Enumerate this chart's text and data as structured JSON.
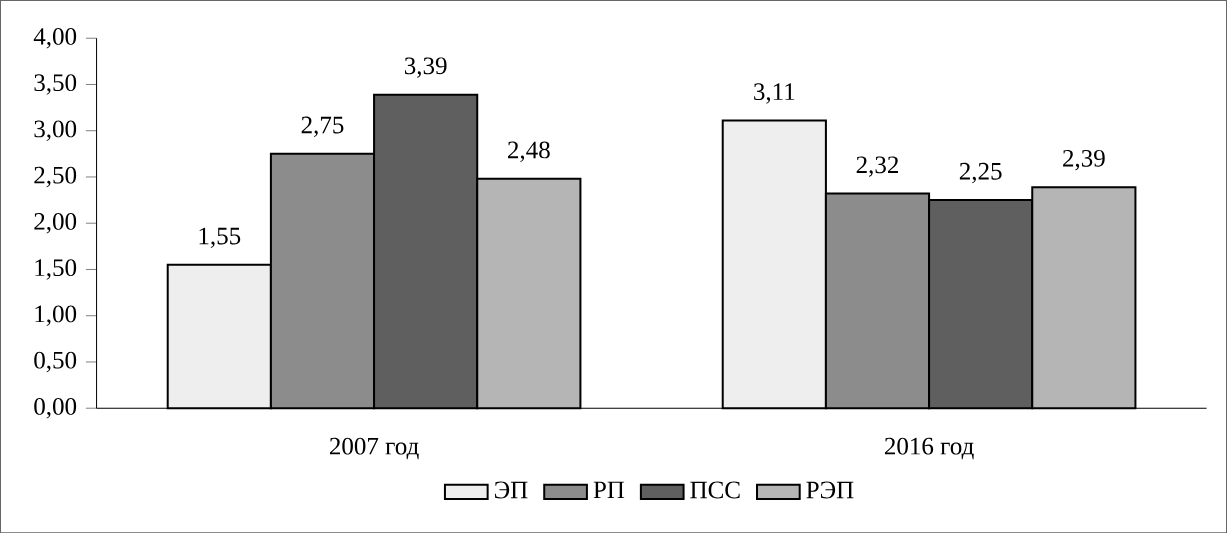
{
  "chart_data": {
    "type": "bar",
    "categories": [
      "2007 год",
      "2016 год"
    ],
    "series": [
      {
        "name": "ЭП",
        "color": "#eeeeee",
        "values": [
          1.55,
          3.11
        ],
        "value_labels": [
          "1,55",
          "3,11"
        ]
      },
      {
        "name": "РП",
        "color": "#8c8c8c",
        "values": [
          2.75,
          2.32
        ],
        "value_labels": [
          "2,75",
          "2,32"
        ]
      },
      {
        "name": "ПСС",
        "color": "#5f5f5f",
        "values": [
          3.39,
          2.25
        ],
        "value_labels": [
          "3,39",
          "2,25"
        ]
      },
      {
        "name": "РЭП",
        "color": "#b5b5b5",
        "values": [
          2.48,
          2.39
        ],
        "value_labels": [
          "2,48",
          "2,39"
        ]
      }
    ],
    "ylim": [
      0,
      4
    ],
    "yticks": [
      {
        "value": 0,
        "label": "0,00"
      },
      {
        "value": 0.5,
        "label": "0,50"
      },
      {
        "value": 1,
        "label": "1,00"
      },
      {
        "value": 1.5,
        "label": "1,50"
      },
      {
        "value": 2,
        "label": "2,00"
      },
      {
        "value": 2.5,
        "label": "2,50"
      },
      {
        "value": 3,
        "label": "3,00"
      },
      {
        "value": 3.5,
        "label": "3,50"
      },
      {
        "value": 4,
        "label": "4,00"
      }
    ],
    "grid": false,
    "legend": "bottom"
  }
}
